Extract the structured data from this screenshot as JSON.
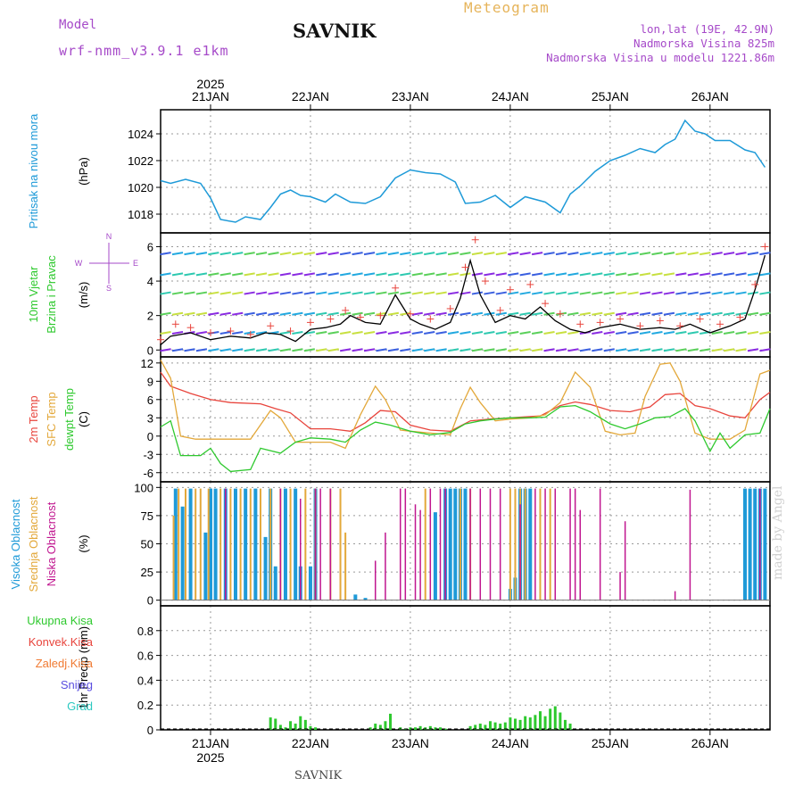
{
  "header": {
    "model_label": "Model",
    "model_name": "wrf-nmm_v3.9.1  e1km",
    "station": "SAVNIK",
    "title": "Meteogram",
    "lonlat": "lon,lat (19E, 42.9N)",
    "elevation": "Nadmorska Visina 825m",
    "model_elevation": "Nadmorska Visina u modelu 1221.86m"
  },
  "footer": {
    "station": "SAVNIK"
  },
  "watermark": "made by Angel",
  "colors": {
    "pressure": "#1e9ad8",
    "temp2m": "#e8443c",
    "sfc_temp": "#e3a83a",
    "dewpt": "#2ec92e",
    "high_cloud": "#1e9ad8",
    "mid_cloud": "#e3a83a",
    "low_cloud": "#c0158f",
    "precip_total": "#2ec92e",
    "wind_speed": "#000000",
    "gust": "#e8443c"
  },
  "chart_data": [
    {
      "type": "line",
      "panel": "pressure",
      "ylabel_side": "Pritisak na nivou mora",
      "ylabel": "(hPa)",
      "ylim": [
        1016.6,
        1025.8
      ],
      "yticks": [
        "1018",
        "1020",
        "1022",
        "1024"
      ],
      "ytick_values": [
        1018,
        1020,
        1022,
        1024
      ],
      "x_start_day": 20.5,
      "x_end_day": 26.6,
      "days": [
        "21JAN",
        "22JAN",
        "23JAN",
        "24JAN",
        "25JAN",
        "26JAN"
      ],
      "year": "2025",
      "series": [
        {
          "x": [
            20.5,
            20.6,
            20.75,
            20.9,
            21.0,
            21.1,
            21.25,
            21.35,
            21.5,
            21.6,
            21.7,
            21.8,
            21.9,
            22.0,
            22.15,
            22.25,
            22.4,
            22.55,
            22.7,
            22.85,
            23.0,
            23.15,
            23.3,
            23.45,
            23.55,
            23.7,
            23.85,
            24.0,
            24.15,
            24.35,
            24.5,
            24.6,
            24.7,
            24.85,
            25.0,
            25.15,
            25.3,
            25.45,
            25.55,
            25.65,
            25.75,
            25.85,
            25.95,
            26.05,
            26.2,
            26.35,
            26.45,
            26.55
          ],
          "values": [
            1020.5,
            1020.3,
            1020.6,
            1020.3,
            1019.2,
            1017.6,
            1017.4,
            1017.8,
            1017.6,
            1018.5,
            1019.5,
            1019.8,
            1019.4,
            1019.3,
            1018.9,
            1019.5,
            1018.9,
            1018.8,
            1019.3,
            1020.7,
            1021.3,
            1021.1,
            1021.0,
            1020.4,
            1018.8,
            1018.9,
            1019.4,
            1018.5,
            1019.3,
            1018.9,
            1018.1,
            1019.5,
            1020.1,
            1021.2,
            1022.0,
            1022.4,
            1022.9,
            1022.6,
            1023.2,
            1023.6,
            1025.0,
            1024.2,
            1024.0,
            1023.5,
            1023.5,
            1022.8,
            1022.6,
            1021.5
          ]
        }
      ]
    },
    {
      "type": "line",
      "panel": "wind",
      "ylabel_side": "10m Vjetar Brzina i Pravac",
      "ylabel": "(m/s)",
      "compass": [
        "N",
        "E",
        "S",
        "W"
      ],
      "ylim": [
        -0.4,
        6.8
      ],
      "yticks": [
        "0",
        "2",
        "4",
        "6"
      ],
      "ytick_values": [
        0,
        2,
        4,
        6
      ],
      "series": [
        {
          "name": "speed",
          "x": [
            20.5,
            20.6,
            20.7,
            20.8,
            21.0,
            21.2,
            21.4,
            21.55,
            21.7,
            21.85,
            22.0,
            22.15,
            22.3,
            22.4,
            22.55,
            22.7,
            22.85,
            23.0,
            23.1,
            23.25,
            23.4,
            23.5,
            23.6,
            23.7,
            23.85,
            24.0,
            24.15,
            24.3,
            24.45,
            24.6,
            24.75,
            24.9,
            25.1,
            25.3,
            25.5,
            25.65,
            25.8,
            26.0,
            26.2,
            26.35,
            26.45,
            26.55
          ],
          "values": [
            0.3,
            0.8,
            0.9,
            1.0,
            0.6,
            0.8,
            0.7,
            1.0,
            0.9,
            0.5,
            1.2,
            1.3,
            1.5,
            2.0,
            1.6,
            1.5,
            3.2,
            1.8,
            1.5,
            1.2,
            1.6,
            3.0,
            5.2,
            3.2,
            1.6,
            2.0,
            1.8,
            2.5,
            1.7,
            1.2,
            1.0,
            1.3,
            1.5,
            1.2,
            1.3,
            1.2,
            1.5,
            1.0,
            1.4,
            1.8,
            3.5,
            5.5
          ]
        },
        {
          "name": "gust",
          "x": [
            20.5,
            20.65,
            20.8,
            21.0,
            21.2,
            21.4,
            21.6,
            21.8,
            22.0,
            22.2,
            22.35,
            22.5,
            22.7,
            22.85,
            23.0,
            23.2,
            23.4,
            23.55,
            23.65,
            23.75,
            23.9,
            24.0,
            24.2,
            24.35,
            24.5,
            24.7,
            24.9,
            25.1,
            25.3,
            25.5,
            25.7,
            25.9,
            26.1,
            26.3,
            26.45,
            26.55
          ],
          "values": [
            0.6,
            1.5,
            1.3,
            1.0,
            1.1,
            0.9,
            1.4,
            1.1,
            1.6,
            1.8,
            2.3,
            1.9,
            2.0,
            3.6,
            2.1,
            1.8,
            2.4,
            4.8,
            6.4,
            4.0,
            2.3,
            3.5,
            3.8,
            2.7,
            2.1,
            1.5,
            1.6,
            1.8,
            1.4,
            1.7,
            1.4,
            1.8,
            1.5,
            1.9,
            3.8,
            6.0
          ]
        }
      ]
    },
    {
      "type": "line",
      "panel": "temperature",
      "ylabel_side": [
        "2m Temp",
        "SFC Temp",
        "dewpt Temp"
      ],
      "ylabel": "(C)",
      "ylim": [
        -7.5,
        13
      ],
      "yticks": [
        "12",
        "9",
        "6",
        "3",
        "0",
        "-3",
        "-6"
      ],
      "ytick_values": [
        12,
        9,
        6,
        3,
        0,
        -3,
        -6
      ],
      "series": [
        {
          "name": "2m Temp",
          "x": [
            20.5,
            20.6,
            20.8,
            21.0,
            21.2,
            21.5,
            21.65,
            21.8,
            22.0,
            22.2,
            22.4,
            22.55,
            22.7,
            22.85,
            23.0,
            23.2,
            23.4,
            23.6,
            23.8,
            24.0,
            24.3,
            24.5,
            24.65,
            24.8,
            25.0,
            25.2,
            25.4,
            25.55,
            25.7,
            25.85,
            26.0,
            26.2,
            26.35,
            26.5,
            26.6
          ],
          "values": [
            10.5,
            8.2,
            7.0,
            6.0,
            5.5,
            5.3,
            4.5,
            3.8,
            1.2,
            1.2,
            0.8,
            2.2,
            4.2,
            4.0,
            1.8,
            1.0,
            0.8,
            2.5,
            2.8,
            3.0,
            3.3,
            5.0,
            5.6,
            5.2,
            4.2,
            4.0,
            4.8,
            6.8,
            7.0,
            5.0,
            4.5,
            3.3,
            3.0,
            6.0,
            7.2
          ]
        },
        {
          "name": "SFC Temp",
          "x": [
            20.5,
            20.6,
            20.7,
            20.85,
            21.0,
            21.2,
            21.4,
            21.6,
            21.7,
            21.85,
            22.0,
            22.2,
            22.35,
            22.5,
            22.65,
            22.75,
            22.9,
            23.0,
            23.2,
            23.4,
            23.5,
            23.6,
            23.7,
            23.85,
            24.0,
            24.2,
            24.35,
            24.5,
            24.65,
            24.8,
            24.95,
            25.1,
            25.25,
            25.35,
            25.5,
            25.6,
            25.7,
            25.85,
            26.0,
            26.2,
            26.35,
            26.5,
            26.6
          ],
          "values": [
            12.5,
            9.5,
            0.0,
            -0.5,
            -0.5,
            -0.5,
            -0.5,
            4.2,
            3.0,
            -1.0,
            -1.0,
            -1.0,
            -2.0,
            3.5,
            8.2,
            6.0,
            1.0,
            0.8,
            0.5,
            0.2,
            4.5,
            8.0,
            5.5,
            2.5,
            2.8,
            3.0,
            3.5,
            5.5,
            10.5,
            8.0,
            0.8,
            0.2,
            0.5,
            6.5,
            11.8,
            12.0,
            9.0,
            0.5,
            -0.5,
            -0.5,
            1.0,
            10.2,
            10.8
          ]
        },
        {
          "name": "dewpt Temp",
          "x": [
            20.5,
            20.6,
            20.7,
            20.9,
            21.0,
            21.1,
            21.2,
            21.4,
            21.5,
            21.7,
            21.85,
            22.0,
            22.2,
            22.35,
            22.5,
            22.65,
            22.8,
            23.0,
            23.2,
            23.4,
            23.55,
            23.7,
            23.85,
            24.0,
            24.2,
            24.35,
            24.5,
            24.65,
            24.8,
            25.0,
            25.15,
            25.3,
            25.45,
            25.6,
            25.75,
            25.85,
            26.0,
            26.1,
            26.2,
            26.35,
            26.5,
            26.6
          ],
          "values": [
            1.5,
            2.5,
            -3.2,
            -3.2,
            -2.0,
            -4.5,
            -5.8,
            -5.5,
            -2.0,
            -2.8,
            -1.0,
            -0.3,
            -0.5,
            -1.0,
            1.0,
            2.3,
            1.8,
            0.8,
            0.2,
            0.6,
            2.0,
            2.5,
            2.8,
            3.0,
            3.0,
            3.1,
            4.8,
            5.0,
            4.0,
            2.0,
            1.2,
            2.0,
            3.0,
            3.2,
            4.5,
            2.5,
            -2.5,
            0.5,
            -2.0,
            0.2,
            0.5,
            4.5
          ]
        }
      ]
    },
    {
      "type": "bar",
      "panel": "cloud",
      "ylabel_side": [
        "Visoka Oblacnost",
        "Srednja Oblacnost",
        "Niska Oblacnost"
      ],
      "ylabel": "(%)",
      "ylim": [
        -5,
        105
      ],
      "yticks": [
        "100",
        "75",
        "50",
        "25",
        "0"
      ],
      "ytick_values": [
        100,
        75,
        50,
        25,
        0
      ],
      "series": [
        {
          "name": "Visoka Oblacnost",
          "x": [
            20.65,
            20.72,
            20.8,
            20.95,
            21.0,
            21.05,
            21.15,
            21.25,
            21.35,
            21.45,
            21.55,
            21.6,
            21.65,
            21.75,
            21.85,
            21.9,
            22.0,
            22.05,
            22.45,
            22.55,
            23.25,
            23.35,
            23.4,
            23.45,
            23.5,
            23.55,
            24.0,
            24.05,
            24.1,
            24.15,
            24.2,
            26.35,
            26.4,
            26.45,
            26.5,
            26.55
          ],
          "values": [
            99,
            83,
            99,
            60,
            99,
            99,
            99,
            99,
            99,
            99,
            56,
            99,
            30,
            99,
            99,
            30,
            30,
            99,
            5,
            2,
            78,
            99,
            99,
            99,
            99,
            99,
            10,
            20,
            99,
            99,
            99,
            99,
            99,
            99,
            99,
            99
          ]
        },
        {
          "name": "Srednja Oblacnost",
          "x": [
            20.63,
            20.68,
            20.75,
            20.85,
            20.9,
            20.98,
            21.1,
            21.2,
            21.3,
            21.4,
            21.5,
            21.6,
            21.7,
            21.8,
            21.95,
            22.05,
            22.2,
            22.3,
            22.35,
            23.15,
            23.5,
            23.6,
            24.0,
            24.05,
            24.1,
            24.15,
            24.3,
            24.4
          ],
          "values": [
            75,
            99,
            99,
            99,
            99,
            99,
            99,
            99,
            99,
            99,
            99,
            99,
            99,
            99,
            99,
            99,
            99,
            99,
            60,
            99,
            99,
            99,
            99,
            99,
            99,
            99,
            99,
            99
          ]
        },
        {
          "name": "Niska Oblacnost",
          "x": [
            21.15,
            21.7,
            21.9,
            22.05,
            22.1,
            22.2,
            22.65,
            22.75,
            22.9,
            22.95,
            23.05,
            23.1,
            23.2,
            23.3,
            23.35,
            23.6,
            23.7,
            23.8,
            23.9,
            24.1,
            24.25,
            24.35,
            24.45,
            24.6,
            24.65,
            24.7,
            24.9,
            25.1,
            25.15,
            25.65,
            25.8,
            26.5
          ],
          "values": [
            99,
            99,
            90,
            99,
            99,
            99,
            35,
            60,
            99,
            99,
            85,
            80,
            99,
            99,
            99,
            99,
            99,
            99,
            99,
            85,
            99,
            99,
            99,
            99,
            99,
            80,
            99,
            25,
            70,
            8,
            98,
            99
          ]
        }
      ]
    },
    {
      "type": "bar",
      "panel": "precip",
      "legend": [
        "Ukupna Kisa",
        "Konvek.Kisa",
        "Zaledj.Kisa",
        "Snijeg",
        "Grad"
      ],
      "legend_colors": [
        "#2ec92e",
        "#e8443c",
        "#f07a32",
        "#5a4ee0",
        "#2cc8c0"
      ],
      "ylabel": "1hr Precip (mm)",
      "ylim": [
        0,
        1.0
      ],
      "yticks": [
        "0.8",
        "0.6",
        "0.4",
        "0.2",
        "0"
      ],
      "ytick_values": [
        0.8,
        0.6,
        0.4,
        0.2,
        0
      ],
      "series": [
        {
          "name": "Ukupna Kisa",
          "x": [
            21.6,
            21.65,
            21.7,
            21.75,
            21.8,
            21.85,
            21.9,
            21.95,
            22.0,
            22.05,
            22.6,
            22.65,
            22.7,
            22.75,
            22.8,
            22.9,
            22.95,
            23.0,
            23.05,
            23.1,
            23.15,
            23.2,
            23.25,
            23.3,
            23.35,
            23.6,
            23.65,
            23.7,
            23.75,
            23.8,
            23.85,
            23.9,
            23.95,
            24.0,
            24.05,
            24.1,
            24.15,
            24.2,
            24.25,
            24.3,
            24.35,
            24.4,
            24.45,
            24.5,
            24.55,
            24.6
          ],
          "values": [
            0.1,
            0.09,
            0.04,
            0.02,
            0.07,
            0.05,
            0.11,
            0.08,
            0.03,
            0.02,
            0.02,
            0.05,
            0.04,
            0.07,
            0.13,
            0.02,
            0.01,
            0.02,
            0.02,
            0.03,
            0.02,
            0.03,
            0.02,
            0.02,
            0.01,
            0.03,
            0.04,
            0.05,
            0.04,
            0.07,
            0.06,
            0.05,
            0.06,
            0.1,
            0.09,
            0.08,
            0.11,
            0.1,
            0.12,
            0.15,
            0.11,
            0.17,
            0.19,
            0.14,
            0.08,
            0.05
          ]
        }
      ]
    }
  ]
}
